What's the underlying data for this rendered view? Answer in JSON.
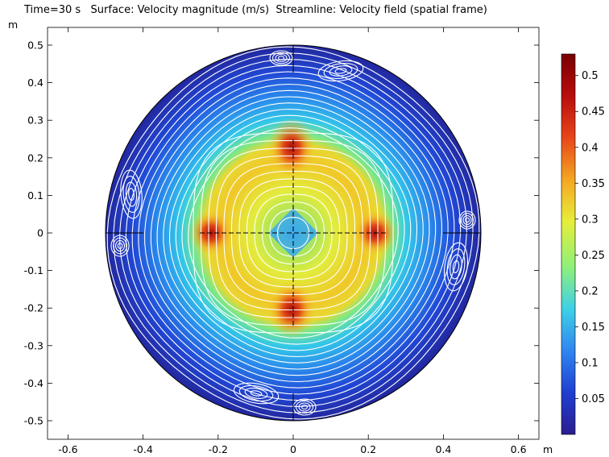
{
  "chart_data": {
    "type": "heatmap",
    "title": "Time=30 s   Surface: Velocity magnitude (m/s)  Streamline: Velocity field (spatial frame)",
    "x_unit": "m",
    "y_unit": "m",
    "xlim": [
      -0.65,
      0.65
    ],
    "ylim": [
      -0.55,
      0.55
    ],
    "x_ticks": [
      -0.6,
      -0.4,
      -0.2,
      0,
      0.2,
      0.4,
      0.6
    ],
    "x_tick_labels": [
      "-0.6",
      "-0.4",
      "-0.2",
      "0",
      "0.2",
      "0.4",
      "0.6"
    ],
    "y_ticks": [
      0.5,
      0.4,
      0.3,
      0.2,
      0.1,
      0,
      -0.1,
      -0.2,
      -0.3,
      -0.4,
      -0.5
    ],
    "y_tick_labels": [
      "0.5",
      "0.4",
      "0.3",
      "0.2",
      "0.1",
      "0",
      "-0.1",
      "-0.2",
      "-0.3",
      "-0.4",
      "-0.5"
    ],
    "domain": {
      "shape": "circle",
      "center": [
        0,
        0
      ],
      "radius": 0.5
    },
    "inner_square_half_diagonal": 0.25,
    "colorbar": {
      "min": 0,
      "max": 0.53,
      "ticks": [
        0.5,
        0.45,
        0.4,
        0.35,
        0.3,
        0.25,
        0.2,
        0.15,
        0.1,
        0.05
      ],
      "tick_labels": [
        "0.5",
        "0.45",
        "0.4",
        "0.35",
        "0.3",
        "0.25",
        "0.2",
        "0.15",
        "0.1",
        "0.05"
      ],
      "colormap": [
        "#2b1d8f",
        "#1f3fd1",
        "#2f86f0",
        "#3fd1e6",
        "#8ef07a",
        "#e6ee3a",
        "#f5a623",
        "#e8451a",
        "#b80d0d",
        "#7a0000"
      ]
    },
    "grid": false,
    "streamline_color": "#ffffff"
  }
}
